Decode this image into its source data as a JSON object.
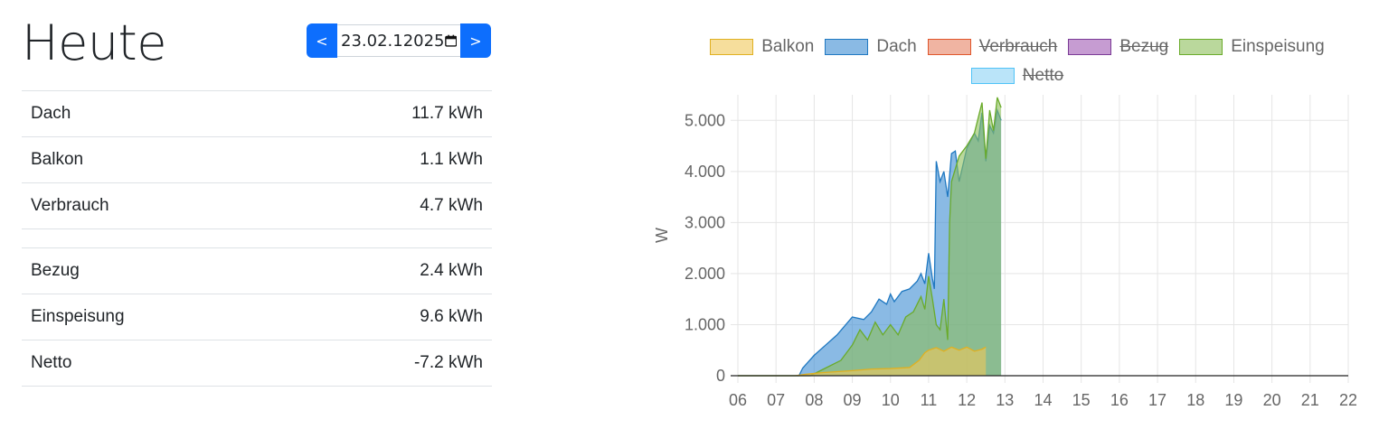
{
  "header": {
    "title": "Heute",
    "prev_label": "<",
    "next_label": ">",
    "date_value": "23.02.12025"
  },
  "summary": {
    "rows_top": [
      {
        "label": "Dach",
        "value": "11.7 kWh"
      },
      {
        "label": "Balkon",
        "value": "1.1 kWh"
      },
      {
        "label": "Verbrauch",
        "value": "4.7 kWh"
      }
    ],
    "rows_bottom": [
      {
        "label": "Bezug",
        "value": "2.4 kWh"
      },
      {
        "label": "Einspeisung",
        "value": "9.6 kWh"
      },
      {
        "label": "Netto",
        "value": "-7.2 kWh"
      }
    ]
  },
  "chart_data": {
    "type": "area",
    "ylabel": "W",
    "xlabel": "",
    "ylim": [
      0,
      5500
    ],
    "xlim": [
      6,
      22
    ],
    "yticks": [
      "0",
      "1.000",
      "2.000",
      "3.000",
      "4.000",
      "5.000"
    ],
    "xticks": [
      "06",
      "07",
      "08",
      "09",
      "10",
      "11",
      "12",
      "13",
      "14",
      "15",
      "16",
      "17",
      "18",
      "19",
      "20",
      "21",
      "22"
    ],
    "grid": true,
    "legend_position": "top",
    "series": [
      {
        "name": "Balkon",
        "color": "#e0b020",
        "fill": "rgba(240,200,90,0.6)",
        "visible": true,
        "x": [
          6.0,
          7.5,
          7.8,
          8.2,
          8.6,
          9.0,
          9.5,
          10.0,
          10.5,
          10.75,
          10.9,
          11.0,
          11.2,
          11.4,
          11.6,
          11.8,
          12.0,
          12.2,
          12.4,
          12.5
        ],
        "y": [
          0,
          0,
          30,
          60,
          80,
          100,
          130,
          140,
          160,
          300,
          450,
          500,
          550,
          480,
          560,
          500,
          560,
          480,
          520,
          560
        ]
      },
      {
        "name": "Dach",
        "color": "#1f78c1",
        "fill": "rgba(60,140,210,0.6)",
        "visible": true,
        "x": [
          6.0,
          7.6,
          7.7,
          8.0,
          8.3,
          8.6,
          9.0,
          9.3,
          9.5,
          9.7,
          9.9,
          10.0,
          10.1,
          10.3,
          10.5,
          10.7,
          10.8,
          10.9,
          11.0,
          11.1,
          11.15,
          11.2,
          11.3,
          11.4,
          11.5,
          11.6,
          11.7,
          11.8,
          12.0,
          12.2,
          12.3,
          12.4,
          12.5,
          12.6,
          12.7,
          12.8,
          12.9
        ],
        "y": [
          0,
          0,
          150,
          400,
          600,
          800,
          1150,
          1100,
          1250,
          1500,
          1400,
          1600,
          1450,
          1650,
          1700,
          1850,
          2000,
          1800,
          2400,
          1900,
          1700,
          4200,
          3800,
          4000,
          3500,
          4350,
          4400,
          3800,
          4450,
          4750,
          4600,
          5150,
          4200,
          4900,
          4750,
          5200,
          5000
        ]
      },
      {
        "name": "Verbrauch",
        "color": "#e0552a",
        "fill": "rgba(230,130,100,0.6)",
        "visible": false
      },
      {
        "name": "Bezug",
        "color": "#7b3a96",
        "fill": "rgba(160,90,180,0.6)",
        "visible": false
      },
      {
        "name": "Einspeisung",
        "color": "#6aab2a",
        "fill": "rgba(140,190,90,0.6)",
        "visible": true,
        "x": [
          6.0,
          7.9,
          8.3,
          8.7,
          9.0,
          9.2,
          9.4,
          9.6,
          9.8,
          10.0,
          10.2,
          10.4,
          10.6,
          10.8,
          10.9,
          11.0,
          11.1,
          11.2,
          11.3,
          11.4,
          11.5,
          11.55,
          11.6,
          11.8,
          12.0,
          12.2,
          12.4,
          12.5,
          12.6,
          12.7,
          12.8,
          12.9
        ],
        "y": [
          0,
          0,
          150,
          300,
          600,
          900,
          700,
          1050,
          800,
          1000,
          800,
          1150,
          1250,
          1550,
          1300,
          1950,
          1500,
          1000,
          900,
          1500,
          700,
          3000,
          3800,
          4300,
          4500,
          4750,
          5350,
          4250,
          5200,
          4800,
          5450,
          5250
        ]
      },
      {
        "name": "Netto",
        "color": "#4fc3f7",
        "fill": "rgba(140,210,245,0.6)",
        "visible": false
      }
    ]
  }
}
